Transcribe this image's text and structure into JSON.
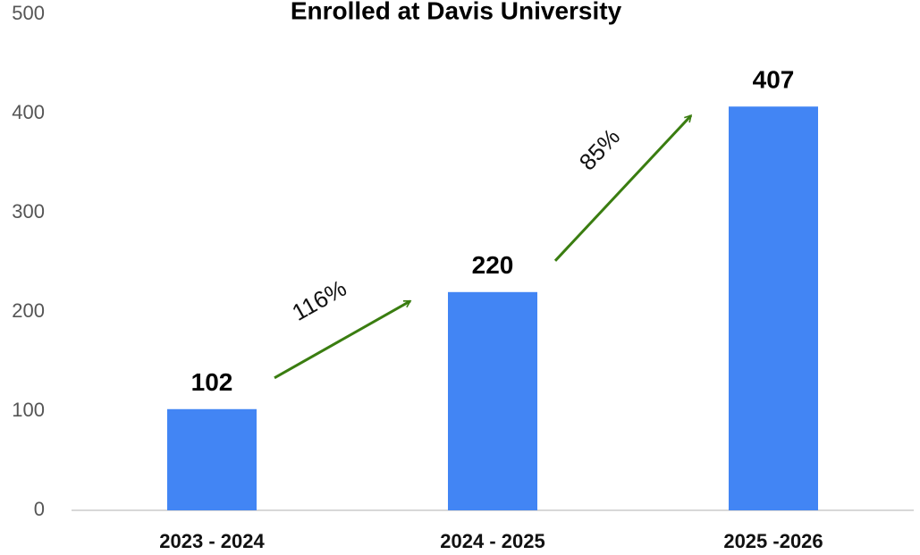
{
  "chart_data": {
    "type": "bar",
    "title": "Enrolled at Davis University",
    "categories": [
      "2023 - 2024",
      "2024 - 2025",
      "2025 -2026"
    ],
    "values": [
      102,
      220,
      407
    ],
    "color": "#4285f4",
    "ylim": [
      0,
      500
    ],
    "yticks": [
      0,
      100,
      200,
      300,
      400,
      500
    ],
    "grid": false,
    "annotations": [
      {
        "text": "116%"
      },
      {
        "text": "85%"
      }
    ],
    "annotation_color": "#3a7d10"
  }
}
